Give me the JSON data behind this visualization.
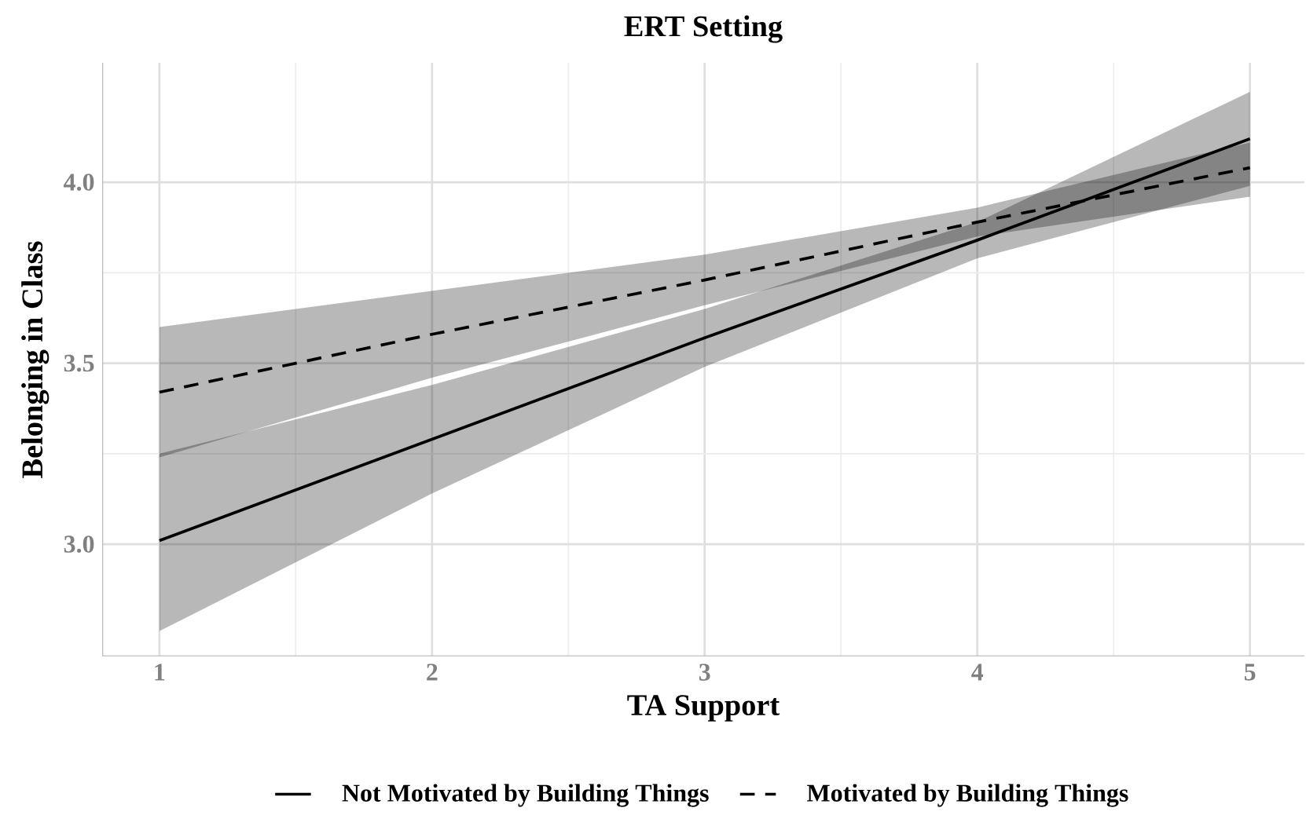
{
  "chart_data": {
    "type": "line",
    "title": "ERT Setting",
    "xlabel": "TA Support",
    "ylabel": "Belonging in Class",
    "x": [
      1,
      2,
      3,
      4,
      5
    ],
    "series": [
      {
        "name": "Not Motivated by Building Things",
        "color": "#000000",
        "line_style": "solid",
        "values": [
          3.01,
          3.29,
          3.57,
          3.84,
          4.12
        ],
        "lower": [
          2.76,
          3.14,
          3.49,
          3.79,
          3.99
        ],
        "upper": [
          3.25,
          3.44,
          3.65,
          3.89,
          4.25
        ]
      },
      {
        "name": "Motivated by Building Things",
        "color": "#000000",
        "line_style": "dashed",
        "values": [
          3.42,
          3.58,
          3.73,
          3.89,
          4.04
        ],
        "lower": [
          3.24,
          3.46,
          3.66,
          3.85,
          3.96
        ],
        "upper": [
          3.6,
          3.7,
          3.8,
          3.93,
          4.11
        ]
      }
    ],
    "xlim": [
      0.79,
      5.2
    ],
    "ylim": [
      2.69,
      4.33
    ],
    "xticks": [
      1,
      2,
      3,
      4,
      5
    ],
    "yticks": [
      {
        "value": 3,
        "label": "3.0"
      },
      {
        "value": 3.5,
        "label": "3.5"
      },
      {
        "value": 4,
        "label": "4.0"
      }
    ],
    "grid": true,
    "legend": "bottom",
    "marker": "none"
  }
}
